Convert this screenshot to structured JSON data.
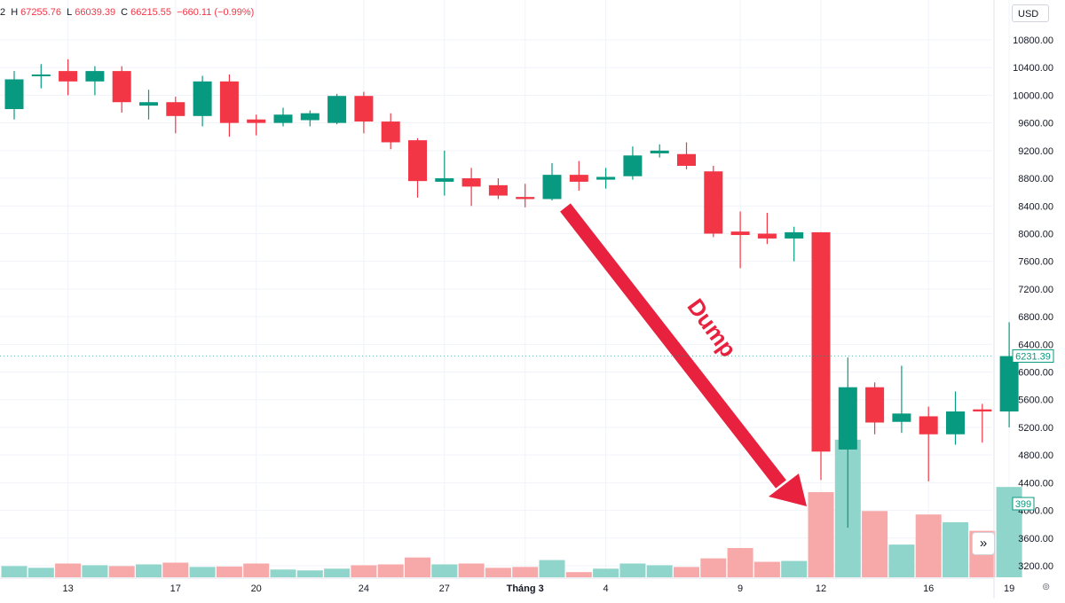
{
  "header": {
    "ohlc": {
      "prefix": "2",
      "h_key": "H",
      "high": "67255.76",
      "l_key": "L",
      "low": "66039.39",
      "c_key": "C",
      "close": "66215.55",
      "change": "−660.11 (−0.99%)"
    },
    "currency": "USD"
  },
  "controls": {
    "scroll_to_realtime_glyph": "»",
    "settings_glyph": "⊚"
  },
  "colors": {
    "up": "#089981",
    "down": "#f23645",
    "vol_up": "#8fd5cb",
    "vol_down": "#f7a9a9",
    "arrow": "#e8213f",
    "grid": "#f0f3fa"
  },
  "chart_data": {
    "type": "candlestick",
    "price_axis": {
      "min": 3000,
      "max": 11000,
      "ticks": [
        "10800.00",
        "10400.00",
        "10000.00",
        "9600.00",
        "9200.00",
        "8800.00",
        "8400.00",
        "8000.00",
        "7600.00",
        "7200.00",
        "6800.00",
        "6400.00",
        "6000.00",
        "5600.00",
        "5200.00",
        "4800.00",
        "4400.00",
        "4000.00",
        "3600.00",
        "3200.00"
      ],
      "last_price_label": "6231.39",
      "volume_label": "399"
    },
    "time_axis": {
      "labels": [
        {
          "text": "13",
          "index": 2
        },
        {
          "text": "17",
          "index": 6
        },
        {
          "text": "20",
          "index": 9
        },
        {
          "text": "24",
          "index": 13
        },
        {
          "text": "27",
          "index": 16
        },
        {
          "text": "Tháng 3",
          "index": 19
        },
        {
          "text": "4",
          "index": 22
        },
        {
          "text": "9",
          "index": 27
        },
        {
          "text": "12",
          "index": 30
        },
        {
          "text": "16",
          "index": 34
        },
        {
          "text": "19",
          "index": 37
        }
      ]
    },
    "candles": [
      {
        "o": 9800,
        "h": 10350,
        "l": 9650,
        "c": 10230,
        "v": 130
      },
      {
        "o": 10280,
        "h": 10450,
        "l": 10100,
        "c": 10300,
        "v": 110
      },
      {
        "o": 10350,
        "h": 10520,
        "l": 10000,
        "c": 10200,
        "v": 160
      },
      {
        "o": 10200,
        "h": 10420,
        "l": 10000,
        "c": 10350,
        "v": 140
      },
      {
        "o": 10350,
        "h": 10420,
        "l": 9750,
        "c": 9900,
        "v": 130
      },
      {
        "o": 9850,
        "h": 10080,
        "l": 9650,
        "c": 9900,
        "v": 150
      },
      {
        "o": 9900,
        "h": 9980,
        "l": 9450,
        "c": 9700,
        "v": 170
      },
      {
        "o": 9700,
        "h": 10280,
        "l": 9550,
        "c": 10200,
        "v": 120
      },
      {
        "o": 10200,
        "h": 10300,
        "l": 9400,
        "c": 9600,
        "v": 125
      },
      {
        "o": 9650,
        "h": 9720,
        "l": 9420,
        "c": 9600,
        "v": 160
      },
      {
        "o": 9600,
        "h": 9820,
        "l": 9550,
        "c": 9720,
        "v": 90
      },
      {
        "o": 9640,
        "h": 9780,
        "l": 9550,
        "c": 9740,
        "v": 80
      },
      {
        "o": 9600,
        "h": 10020,
        "l": 9580,
        "c": 9990,
        "v": 100
      },
      {
        "o": 9990,
        "h": 10050,
        "l": 9450,
        "c": 9620,
        "v": 140
      },
      {
        "o": 9620,
        "h": 9740,
        "l": 9220,
        "c": 9320,
        "v": 150
      },
      {
        "o": 9350,
        "h": 9380,
        "l": 8520,
        "c": 8760,
        "v": 230
      },
      {
        "o": 8750,
        "h": 9200,
        "l": 8550,
        "c": 8800,
        "v": 150
      },
      {
        "o": 8800,
        "h": 8950,
        "l": 8400,
        "c": 8680,
        "v": 160
      },
      {
        "o": 8700,
        "h": 8800,
        "l": 8500,
        "c": 8550,
        "v": 110
      },
      {
        "o": 8530,
        "h": 8720,
        "l": 8380,
        "c": 8500,
        "v": 120
      },
      {
        "o": 8500,
        "h": 9020,
        "l": 8480,
        "c": 8850,
        "v": 200
      },
      {
        "o": 8850,
        "h": 9050,
        "l": 8620,
        "c": 8750,
        "v": 60
      },
      {
        "o": 8780,
        "h": 8950,
        "l": 8650,
        "c": 8820,
        "v": 100
      },
      {
        "o": 8830,
        "h": 9260,
        "l": 8780,
        "c": 9130,
        "v": 160
      },
      {
        "o": 9160,
        "h": 9290,
        "l": 9100,
        "c": 9200,
        "v": 140
      },
      {
        "o": 9150,
        "h": 9320,
        "l": 8930,
        "c": 8980,
        "v": 120
      },
      {
        "o": 8900,
        "h": 8980,
        "l": 7950,
        "c": 8000,
        "v": 220
      },
      {
        "o": 8030,
        "h": 8320,
        "l": 7500,
        "c": 7980,
        "v": 340
      },
      {
        "o": 8000,
        "h": 8300,
        "l": 7850,
        "c": 7930,
        "v": 180
      },
      {
        "o": 7930,
        "h": 8100,
        "l": 7600,
        "c": 8020,
        "v": 190
      },
      {
        "o": 8020,
        "h": 8020,
        "l": 4440,
        "c": 4850,
        "v": 990
      },
      {
        "o": 4880,
        "h": 6210,
        "l": 3750,
        "c": 5780,
        "v": 1600
      },
      {
        "o": 5780,
        "h": 5850,
        "l": 5100,
        "c": 5270,
        "v": 770
      },
      {
        "o": 5280,
        "h": 6090,
        "l": 5120,
        "c": 5400,
        "v": 380
      },
      {
        "o": 5360,
        "h": 5500,
        "l": 4420,
        "c": 5100,
        "v": 730
      },
      {
        "o": 5100,
        "h": 5720,
        "l": 4950,
        "c": 5430,
        "v": 640
      },
      {
        "o": 5460,
        "h": 5540,
        "l": 4980,
        "c": 5430,
        "v": 540
      },
      {
        "o": 5430,
        "h": 6720,
        "l": 5200,
        "c": 6230,
        "v": 1050
      }
    ]
  },
  "annotation": {
    "text": "Dump"
  }
}
